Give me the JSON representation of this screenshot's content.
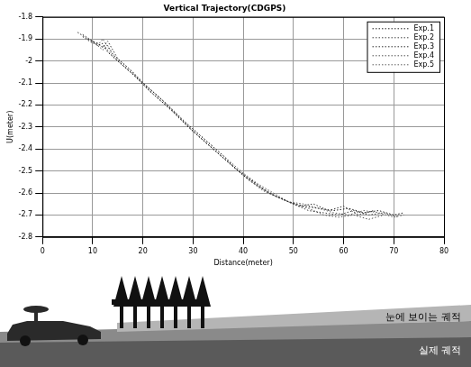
{
  "chart_data": {
    "type": "line",
    "title": "Vertical Trajectory(CDGPS)",
    "x_label": "Distance(meter)",
    "y_label": "U(meter)",
    "xlim": [
      0,
      80
    ],
    "xticks": [
      0,
      10,
      20,
      30,
      40,
      50,
      60,
      70,
      80
    ],
    "ylim": [
      -2.8,
      -1.8
    ],
    "yticks": [
      -1.8,
      -1.9,
      -2,
      -2.1,
      -2.2,
      -2.3,
      -2.4,
      -2.5,
      -2.6,
      -2.7,
      -2.8
    ],
    "grid": true,
    "legend": "upper right",
    "line_style": "dotted",
    "series": [
      {
        "name": "Exp.1",
        "color": "#202020",
        "x": [
          7,
          9,
          11,
          12,
          13,
          15,
          18,
          21,
          25,
          29,
          33,
          37,
          40,
          43,
          46,
          49,
          52,
          55,
          58,
          61,
          64,
          67,
          70,
          72
        ],
        "values": [
          -1.87,
          -1.9,
          -1.93,
          -1.92,
          -1.96,
          -2.0,
          -2.06,
          -2.13,
          -2.21,
          -2.3,
          -2.38,
          -2.46,
          -2.52,
          -2.57,
          -2.61,
          -2.64,
          -2.66,
          -2.67,
          -2.68,
          -2.67,
          -2.69,
          -2.68,
          -2.7,
          -2.69
        ]
      },
      {
        "name": "Exp.2",
        "color": "#404040",
        "x": [
          8,
          10,
          12,
          13,
          14,
          16,
          19,
          22,
          26,
          30,
          34,
          38,
          41,
          44,
          47,
          50,
          53,
          56,
          59,
          62,
          65,
          68,
          71
        ],
        "values": [
          -1.88,
          -1.91,
          -1.95,
          -1.93,
          -1.97,
          -2.02,
          -2.08,
          -2.15,
          -2.23,
          -2.32,
          -2.4,
          -2.48,
          -2.54,
          -2.59,
          -2.62,
          -2.65,
          -2.68,
          -2.69,
          -2.7,
          -2.68,
          -2.7,
          -2.69,
          -2.71
        ]
      },
      {
        "name": "Exp.3",
        "color": "#303030",
        "x": [
          9,
          11,
          12,
          13,
          15,
          17,
          20,
          24,
          28,
          32,
          36,
          39,
          42,
          45,
          48,
          51,
          54,
          57,
          60,
          63,
          66
        ],
        "values": [
          -1.9,
          -1.92,
          -1.94,
          -1.91,
          -1.99,
          -2.03,
          -2.1,
          -2.18,
          -2.27,
          -2.35,
          -2.43,
          -2.5,
          -2.55,
          -2.6,
          -2.63,
          -2.66,
          -2.65,
          -2.68,
          -2.66,
          -2.7,
          -2.68
        ]
      },
      {
        "name": "Exp.4",
        "color": "#505050",
        "x": [
          8,
          10,
          11,
          13,
          14,
          17,
          20,
          23,
          27,
          31,
          35,
          38,
          41,
          44,
          47,
          50,
          53,
          56,
          59,
          62,
          65,
          68
        ],
        "values": [
          -1.89,
          -1.92,
          -1.92,
          -1.95,
          -1.98,
          -2.04,
          -2.1,
          -2.16,
          -2.25,
          -2.34,
          -2.42,
          -2.48,
          -2.53,
          -2.58,
          -2.62,
          -2.65,
          -2.67,
          -2.7,
          -2.71,
          -2.7,
          -2.72,
          -2.7
        ]
      },
      {
        "name": "Exp.5",
        "color": "#606060",
        "x": [
          10,
          11,
          12,
          14,
          16,
          18,
          21,
          25,
          29,
          33,
          37,
          40,
          43,
          46,
          49,
          52,
          55,
          58,
          61,
          64,
          67,
          70,
          72
        ],
        "values": [
          -1.91,
          -1.93,
          -1.9,
          -1.97,
          -2.01,
          -2.05,
          -2.12,
          -2.2,
          -2.29,
          -2.37,
          -2.45,
          -2.51,
          -2.56,
          -2.6,
          -2.64,
          -2.65,
          -2.67,
          -2.69,
          -2.7,
          -2.68,
          -2.69,
          -2.71,
          -2.7
        ]
      }
    ],
    "annotations": [
      "눈에 보이는 궤적",
      "실제 궤적"
    ]
  }
}
